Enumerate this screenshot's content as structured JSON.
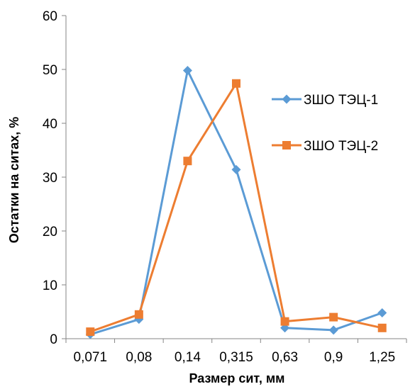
{
  "chart_data": {
    "type": "line",
    "title": "",
    "xlabel": "Размер сит, мм",
    "ylabel": "Остатки на ситах, %",
    "categories": [
      "0,071",
      "0,08",
      "0,14",
      "0,315",
      "0,63",
      "0,9",
      "1,25"
    ],
    "ylim": [
      0,
      60
    ],
    "yticks": [
      0,
      10,
      20,
      30,
      40,
      50,
      60
    ],
    "grid": false,
    "legend_position": "right",
    "series": [
      {
        "name": "ЗШО ТЭЦ-1",
        "color": "#5B9BD5",
        "marker": "diamond",
        "values": [
          0.8,
          3.6,
          49.8,
          31.4,
          2.0,
          1.6,
          4.8
        ]
      },
      {
        "name": "ЗШО ТЭЦ-2",
        "color": "#ED7D31",
        "marker": "square",
        "values": [
          1.3,
          4.5,
          33.0,
          47.4,
          3.2,
          4.0,
          2.0
        ]
      }
    ]
  }
}
